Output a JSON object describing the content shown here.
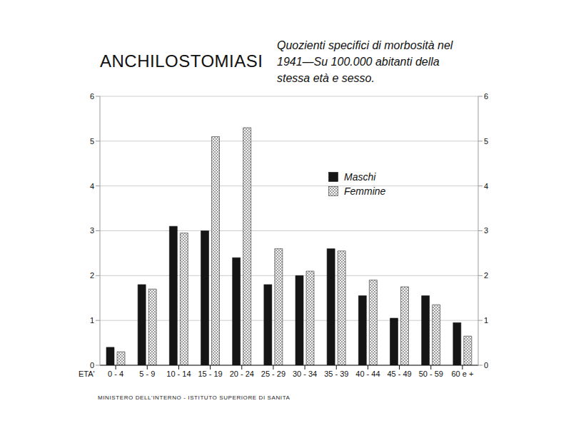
{
  "chart_data": {
    "type": "bar",
    "title": "ANCHILOSTOMIASI",
    "subtitle": "Quozienti specifici di morbosità nel 1941—Su 100.000 abitanti della stessa età e sesso.",
    "x_label": "ETA'",
    "footer": "MINISTERO DELL'INTERNO - ISTITUTO SUPERIORE DI SANITA",
    "categories": [
      "0 - 4",
      "5 - 9",
      "10 - 14",
      "15 - 19",
      "20 - 24",
      "25 - 29",
      "30 - 34",
      "35 - 39",
      "40 - 44",
      "45 - 49",
      "50 - 59",
      "60 e +"
    ],
    "series": [
      {
        "name": "Maschi",
        "color": "#151515",
        "values": [
          0.4,
          1.8,
          3.1,
          3.0,
          2.4,
          1.8,
          2.0,
          2.6,
          1.55,
          1.05,
          1.55,
          0.95
        ]
      },
      {
        "name": "Femmine",
        "color": "#333333",
        "values": [
          0.3,
          1.7,
          2.95,
          5.1,
          5.3,
          2.6,
          2.1,
          2.55,
          1.9,
          1.75,
          1.35,
          0.65
        ]
      }
    ],
    "ylim": [
      0,
      6
    ],
    "yticks": [
      0,
      1,
      2,
      3,
      4,
      5,
      6
    ],
    "grid": true,
    "legend": "top"
  }
}
